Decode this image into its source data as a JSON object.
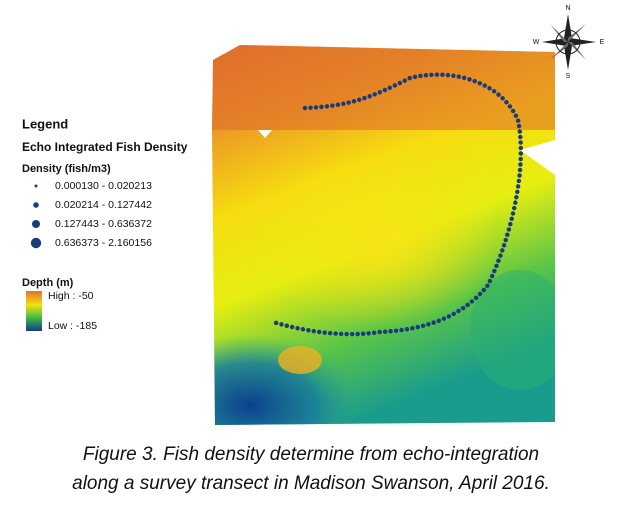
{
  "legend": {
    "title": "Legend",
    "layer": "Echo Integrated Fish Density",
    "field": "Density (fish/m3)",
    "classes": [
      "0.000130 - 0.020213",
      "0.020214 - 0.127442",
      "0.127443 - 0.636372",
      "0.636373 - 2.160156"
    ],
    "depth_title": "Depth (m)",
    "depth_high": "High : -50",
    "depth_low": "Low : -185"
  },
  "compass": {
    "north": "N",
    "south": "S",
    "east": "E",
    "west": "W"
  },
  "caption": [
    "Figure 3. Fish density determine from echo-integration",
    "along a survey transect in Madison Swanson, April 2016."
  ]
}
